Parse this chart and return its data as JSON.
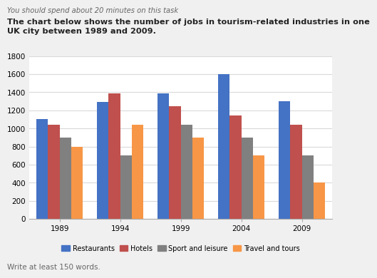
{
  "title_italic": "You should spend about 20 minutes on this task",
  "title_bold": "The chart below shows the number of jobs in tourism-related industries in one\nUK city between 1989 and 2009.",
  "footer": "Write at least 150 words.",
  "years": [
    1989,
    1994,
    1999,
    2004,
    2009
  ],
  "categories": [
    "Restaurants",
    "Hotels",
    "Sport and leisure",
    "Travel and tours"
  ],
  "colors": [
    "#4472c4",
    "#c0504d",
    "#808080",
    "#f79646"
  ],
  "data": {
    "Restaurants": [
      1100,
      1290,
      1390,
      1600,
      1300
    ],
    "Hotels": [
      1040,
      1390,
      1245,
      1140,
      1040
    ],
    "Sport and leisure": [
      900,
      700,
      1040,
      900,
      700
    ],
    "Travel and tours": [
      800,
      1040,
      900,
      700,
      400
    ]
  },
  "ylim": [
    0,
    1800
  ],
  "yticks": [
    0,
    200,
    400,
    600,
    800,
    1000,
    1200,
    1400,
    1600,
    1800
  ],
  "background_color": "#f0f0f0",
  "chart_background": "#ffffff",
  "grid_color": "#d9d9d9",
  "bar_width": 0.19,
  "italic_color": "#666666",
  "bold_color": "#222222",
  "footer_color": "#666666"
}
